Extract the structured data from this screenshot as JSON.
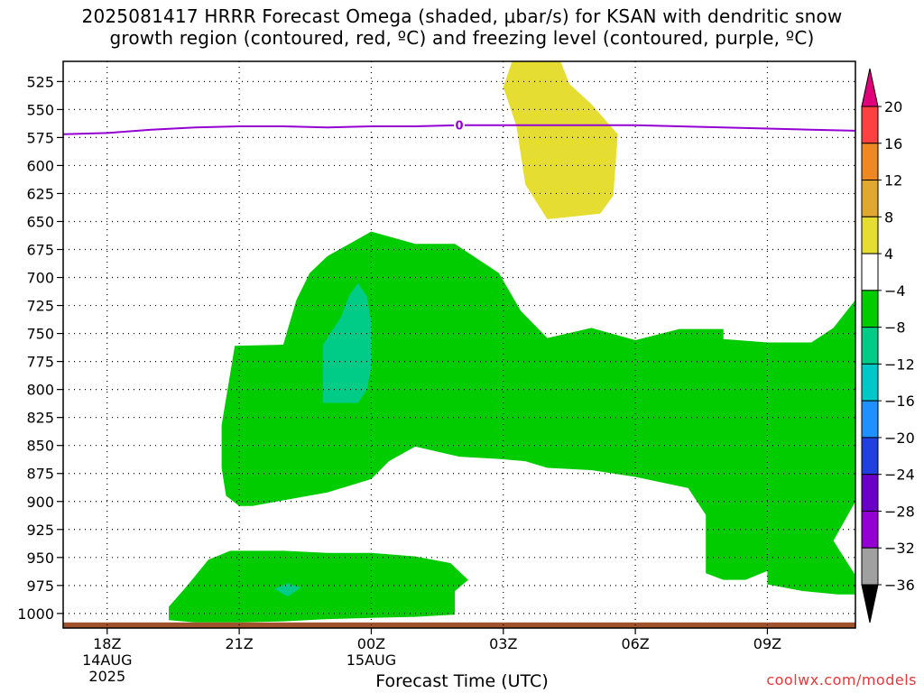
{
  "title": {
    "line1": "2025081417 HRRR Forecast Omega (shaded, μbar/s) for KSAN with dendritic snow",
    "line2": "growth region (contoured, red, ºC) and freezing level (contoured, purple, ºC)"
  },
  "xlabel": "Forecast Time (UTC)",
  "credit": "coolwx.com/models",
  "chart_data": {
    "type": "area",
    "title": "2025081417 HRRR Forecast Omega (shaded, μbar/s) for KSAN with dendritic snow growth region (contoured, red, ºC) and freezing level (contoured, purple, ºC)",
    "xlabel": "Forecast Time (UTC)",
    "ylabel": "",
    "x_ticks": [
      {
        "label": "18Z",
        "sub": [
          "14AUG",
          "2025"
        ],
        "hours": 1
      },
      {
        "label": "21Z",
        "sub": [],
        "hours": 4
      },
      {
        "label": "00Z",
        "sub": [
          "15AUG"
        ],
        "hours": 7
      },
      {
        "label": "03Z",
        "sub": [],
        "hours": 10
      },
      {
        "label": "06Z",
        "sub": [],
        "hours": 13
      },
      {
        "label": "09Z",
        "sub": [],
        "hours": 16
      }
    ],
    "xlim": [
      0,
      18
    ],
    "ylim": [
      1013,
      507
    ],
    "y_ticks": [
      525,
      550,
      575,
      600,
      625,
      650,
      675,
      700,
      725,
      750,
      775,
      800,
      825,
      850,
      875,
      900,
      925,
      950,
      975,
      1000
    ],
    "grid": true,
    "freezing_level": {
      "label": "0",
      "color": "#9400d3",
      "x": [
        0,
        1,
        2,
        3,
        4,
        5,
        6,
        7,
        8,
        9,
        10,
        11,
        12,
        13,
        14,
        15,
        16,
        17,
        18
      ],
      "pressure": [
        572,
        571,
        568,
        566,
        565,
        565,
        566,
        565,
        565,
        564,
        564,
        564,
        564,
        564,
        565,
        566,
        567,
        568,
        569
      ]
    },
    "omega_regions": [
      {
        "name": "4 to 8",
        "color": "#e6dd33",
        "points": [
          [
            10.0,
            530
          ],
          [
            10.2,
            507
          ],
          [
            11.3,
            507
          ],
          [
            11.5,
            527
          ],
          [
            12.0,
            545
          ],
          [
            12.6,
            572
          ],
          [
            12.5,
            627
          ],
          [
            12.2,
            643
          ],
          [
            11.0,
            648
          ],
          [
            10.5,
            617
          ],
          [
            10.3,
            565
          ],
          [
            10.0,
            530
          ]
        ]
      },
      {
        "name": "-4 to -8",
        "color": "#00cc00",
        "points": [
          [
            7.0,
            659
          ],
          [
            8.0,
            670
          ],
          [
            8.9,
            670
          ],
          [
            9.9,
            696
          ],
          [
            10.4,
            730
          ],
          [
            11.0,
            754
          ],
          [
            12.0,
            745
          ],
          [
            13.0,
            756
          ],
          [
            14.0,
            746
          ],
          [
            15.0,
            746
          ],
          [
            15.0,
            755
          ],
          [
            16.0,
            758
          ],
          [
            17.0,
            758
          ],
          [
            17.5,
            745
          ],
          [
            18.0,
            720
          ],
          [
            18.0,
            900
          ],
          [
            17.5,
            935
          ],
          [
            18.0,
            966
          ],
          [
            18.0,
            983
          ],
          [
            17.6,
            983
          ],
          [
            16.8,
            980
          ],
          [
            16.0,
            974
          ],
          [
            16.0,
            962
          ],
          [
            15.5,
            970
          ],
          [
            15.0,
            970
          ],
          [
            14.6,
            964
          ],
          [
            14.6,
            912
          ],
          [
            14.2,
            888
          ],
          [
            13.0,
            878
          ],
          [
            12.0,
            872
          ],
          [
            11.0,
            870
          ],
          [
            10.5,
            864
          ],
          [
            9.9,
            862
          ],
          [
            9.0,
            860
          ],
          [
            8.0,
            851
          ],
          [
            7.4,
            864
          ],
          [
            7.0,
            880
          ],
          [
            6.0,
            892
          ],
          [
            5.0,
            899
          ],
          [
            4.3,
            904
          ],
          [
            4.0,
            904
          ],
          [
            3.7,
            895
          ],
          [
            3.6,
            870
          ],
          [
            3.6,
            832
          ],
          [
            3.9,
            761
          ],
          [
            5.0,
            760
          ],
          [
            5.3,
            720
          ],
          [
            5.6,
            696
          ],
          [
            6.0,
            681
          ],
          [
            7.0,
            659
          ]
        ]
      },
      {
        "name": "-8 to -12",
        "color": "#00cc88",
        "points": [
          [
            6.3,
            736
          ],
          [
            6.5,
            716
          ],
          [
            6.7,
            705
          ],
          [
            6.9,
            717
          ],
          [
            7.0,
            740
          ],
          [
            7.0,
            780
          ],
          [
            6.9,
            800
          ],
          [
            6.7,
            812
          ],
          [
            5.9,
            812
          ],
          [
            5.9,
            760
          ],
          [
            6.3,
            736
          ]
        ]
      },
      {
        "name": "-4 to -8",
        "color": "#00cc00",
        "points": [
          [
            2.8,
            976
          ],
          [
            3.3,
            952
          ],
          [
            3.8,
            944
          ],
          [
            5.0,
            944
          ],
          [
            6.0,
            946
          ],
          [
            7.0,
            946
          ],
          [
            8.0,
            949
          ],
          [
            8.8,
            955
          ],
          [
            9.2,
            970
          ],
          [
            8.9,
            980
          ],
          [
            8.9,
            1001
          ],
          [
            8.0,
            1003
          ],
          [
            7.0,
            1004
          ],
          [
            6.0,
            1005
          ],
          [
            5.0,
            1007
          ],
          [
            4.0,
            1008
          ],
          [
            3.0,
            1008
          ],
          [
            2.4,
            1006
          ],
          [
            2.4,
            994
          ],
          [
            2.8,
            976
          ]
        ]
      },
      {
        "name": "-8 to -12",
        "color": "#00cc88",
        "points": [
          [
            4.8,
            978
          ],
          [
            5.1,
            973
          ],
          [
            5.4,
            977
          ],
          [
            5.1,
            985
          ],
          [
            4.8,
            978
          ]
        ]
      }
    ],
    "terrain": {
      "color": "#a0522d",
      "pressure": 1008
    },
    "colorbar": {
      "labels": [
        "20",
        "16",
        "12",
        "8",
        "4",
        "−4",
        "−8",
        "−12",
        "−16",
        "−20",
        "−24",
        "−28",
        "−32",
        "−36"
      ],
      "colors": [
        "#ff4040",
        "#ee8822",
        "#e0a830",
        "#e6dd33",
        "#ffffff",
        "#00cc00",
        "#00cc88",
        "#00c8c8",
        "#1e90ff",
        "#2040e0",
        "#6a00c8",
        "#9400d3",
        "#a0a0a0"
      ],
      "top_arrow_color": "#e0007a",
      "bottom_arrow_color": "#000000"
    }
  }
}
